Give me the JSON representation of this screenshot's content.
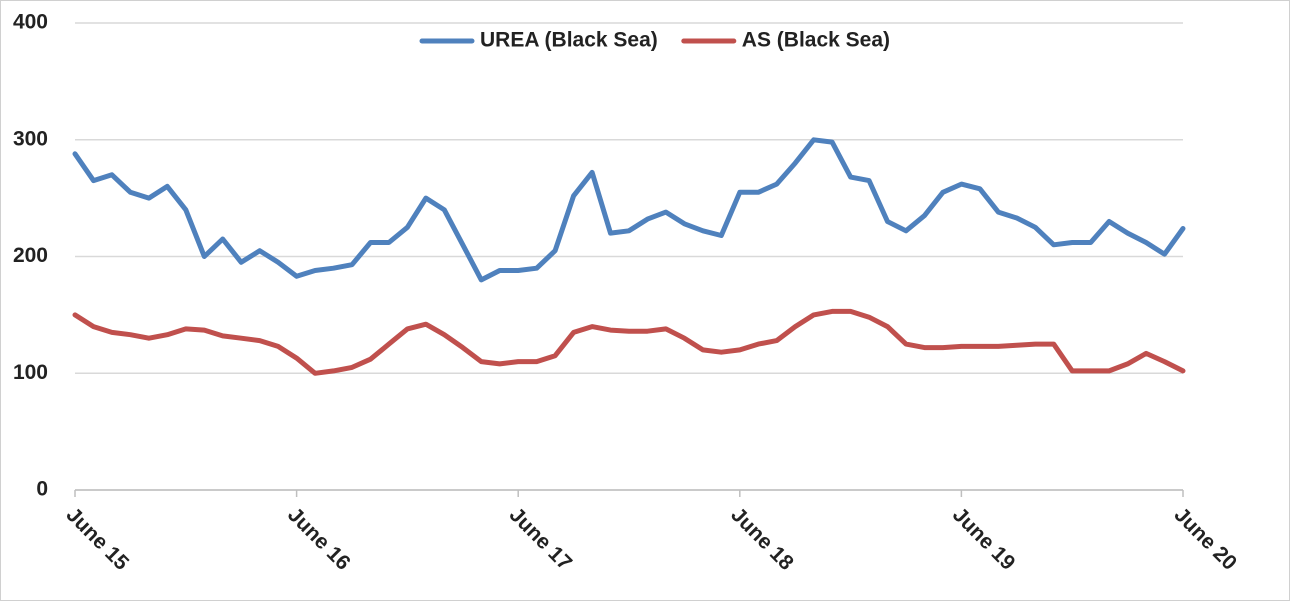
{
  "chart_data": {
    "type": "line",
    "categories": [
      "June 15",
      null,
      null,
      null,
      null,
      null,
      null,
      null,
      null,
      null,
      null,
      null,
      "June 16",
      null,
      null,
      null,
      null,
      null,
      null,
      null,
      null,
      null,
      null,
      null,
      "June 17",
      null,
      null,
      null,
      null,
      null,
      null,
      null,
      null,
      null,
      null,
      null,
      "June 18",
      null,
      null,
      null,
      null,
      null,
      null,
      null,
      null,
      null,
      null,
      null,
      "June 19",
      null,
      null,
      null,
      null,
      null,
      null,
      null,
      null,
      null,
      null,
      null,
      "June 20"
    ],
    "series": [
      {
        "name": "UREA (Black Sea)",
        "color": "#4f81bd",
        "values": [
          288,
          265,
          270,
          255,
          250,
          260,
          240,
          200,
          215,
          195,
          205,
          195,
          183,
          188,
          190,
          193,
          212,
          212,
          225,
          250,
          240,
          210,
          180,
          188,
          188,
          190,
          205,
          252,
          272,
          220,
          222,
          232,
          238,
          228,
          222,
          218,
          255,
          255,
          262,
          280,
          300,
          298,
          268,
          265,
          230,
          222,
          235,
          255,
          262,
          258,
          238,
          233,
          225,
          210,
          212,
          212,
          230,
          220,
          212,
          202,
          224
        ]
      },
      {
        "name": "AS (Black Sea)",
        "color": "#c0504d",
        "values": [
          150,
          140,
          135,
          133,
          130,
          133,
          138,
          137,
          132,
          130,
          128,
          123,
          113,
          100,
          102,
          105,
          112,
          125,
          138,
          142,
          133,
          122,
          110,
          108,
          110,
          110,
          115,
          135,
          140,
          137,
          136,
          136,
          138,
          130,
          120,
          118,
          120,
          125,
          128,
          140,
          150,
          153,
          153,
          148,
          140,
          125,
          122,
          122,
          123,
          123,
          123,
          124,
          125,
          125,
          102,
          102,
          102,
          108,
          117,
          110,
          102
        ]
      }
    ],
    "ylim": [
      0,
      400
    ],
    "yticks": [
      0,
      100,
      200,
      300,
      400
    ],
    "grid": true,
    "legend": "top"
  }
}
